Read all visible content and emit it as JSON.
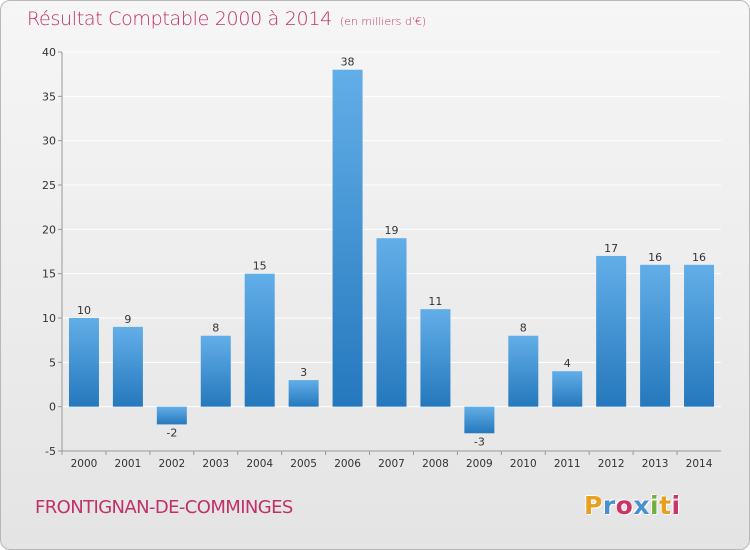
{
  "header": {
    "title": "Résultat Comptable 2000 à 2014",
    "subtitle": "(en milliers d'€)"
  },
  "footer": {
    "commune": "FRONTIGNAN-DE-COMMINGES",
    "logo_text": "Proxiti",
    "logo_colors": [
      "#e8a020",
      "#4a90d0",
      "#cc3366",
      "#4a90d0",
      "#70b040",
      "#e8a020",
      "#cc3366"
    ]
  },
  "colors": {
    "bar_light": "#62aee8",
    "bar_dark": "#2578bd",
    "axis": "#999999",
    "grid": "#ffffff",
    "text": "#333333"
  },
  "chart_data": {
    "type": "bar",
    "title": "Résultat Comptable 2000 à 2014",
    "subtitle": "(en milliers d'€)",
    "xlabel": "",
    "ylabel": "",
    "categories": [
      "2000",
      "2001",
      "2002",
      "2003",
      "2004",
      "2005",
      "2006",
      "2007",
      "2008",
      "2009",
      "2010",
      "2011",
      "2012",
      "2013",
      "2014"
    ],
    "values": [
      10,
      9,
      -2,
      8,
      15,
      3,
      38,
      19,
      11,
      -3,
      8,
      4,
      17,
      16,
      16
    ],
    "ylim": [
      -5,
      40
    ],
    "yticks": [
      -5,
      0,
      5,
      10,
      15,
      20,
      25,
      30,
      35,
      40
    ],
    "grid": true,
    "legend": "none"
  }
}
